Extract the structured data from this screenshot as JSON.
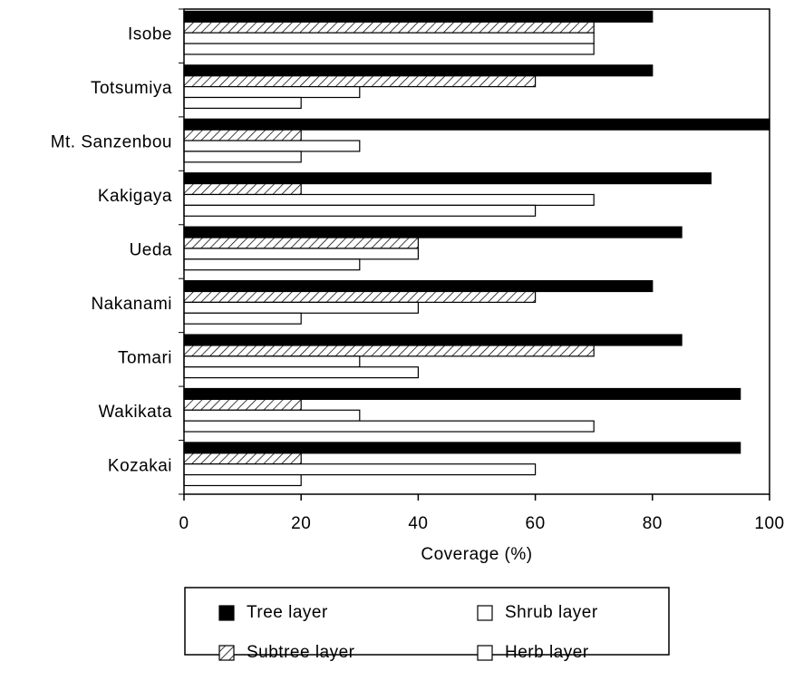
{
  "chart_data": {
    "type": "hbar",
    "xlabel": "Coverage (%)",
    "categories": [
      "Isobe",
      "Totsumiya",
      "Mt. Sanzenbou",
      "Kakigaya",
      "Ueda",
      "Nakanami",
      "Tomari",
      "Wakikata",
      "Kozakai"
    ],
    "series": [
      {
        "name": "Tree layer",
        "color": "#000000",
        "values": [
          80,
          80,
          100,
          90,
          85,
          80,
          85,
          95,
          95
        ]
      },
      {
        "name": "Subtree layer",
        "color": "#ffffff",
        "hatch": true,
        "values": [
          70,
          60,
          20,
          20,
          40,
          60,
          70,
          20,
          20
        ]
      },
      {
        "name": "Shrub layer",
        "color": "#ffffff",
        "values": [
          70,
          30,
          30,
          70,
          40,
          40,
          30,
          30,
          60
        ]
      },
      {
        "name": "Herb layer",
        "color": "#ffffff",
        "values": [
          70,
          20,
          20,
          60,
          30,
          20,
          40,
          70,
          20
        ]
      }
    ],
    "xlim": [
      0,
      100
    ],
    "xticks": [
      0,
      20,
      40,
      60,
      80,
      100
    ],
    "grid": false
  }
}
